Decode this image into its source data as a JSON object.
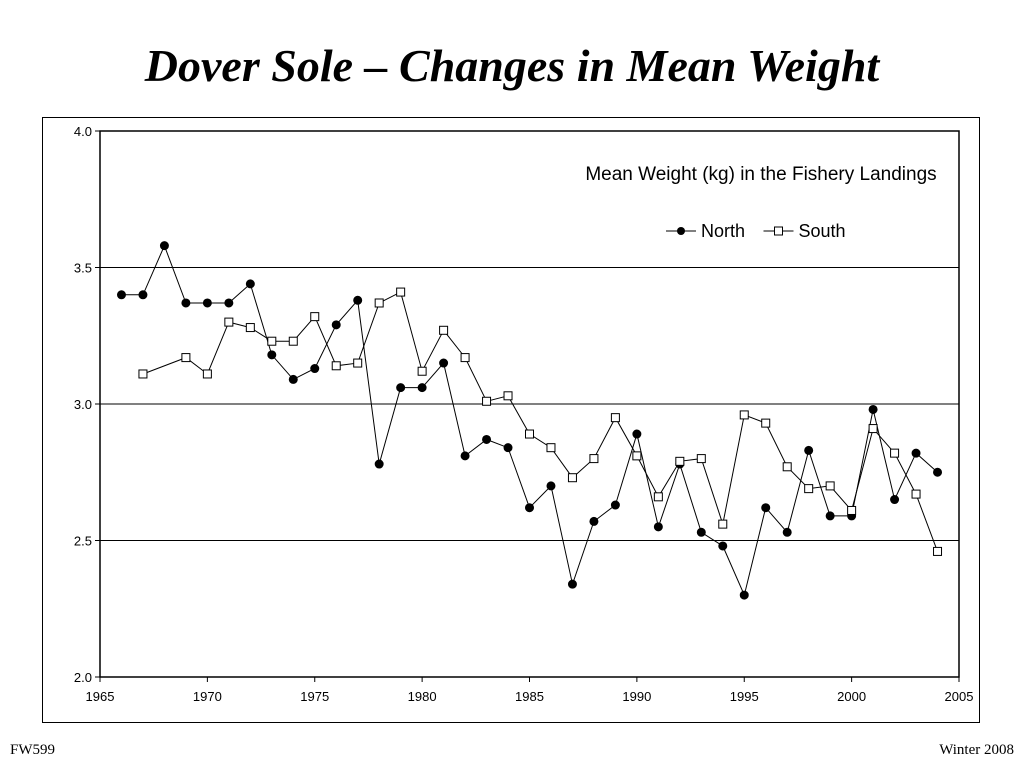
{
  "slide": {
    "title": "Dover Sole – Changes in Mean Weight",
    "footer_left": "FW599",
    "footer_right": "Winter 2008"
  },
  "chart_data": {
    "type": "line",
    "title": "Mean Weight (kg) in the Fishery Landings",
    "xlabel": "",
    "ylabel": "",
    "xlim": [
      1965,
      2005
    ],
    "ylim": [
      2.0,
      4.0
    ],
    "x_ticks": [
      "1965",
      "1970",
      "1975",
      "1980",
      "1985",
      "1990",
      "1995",
      "2000",
      "2005"
    ],
    "y_ticks": [
      "2.0",
      "2.5",
      "3.0",
      "3.5",
      "4.0"
    ],
    "grid": "horizontal",
    "legend_position": "top-right",
    "series": [
      {
        "name": "North",
        "marker": "filled-circle",
        "color": "#000000",
        "points": [
          [
            1966,
            3.4
          ],
          [
            1967,
            3.4
          ],
          [
            1968,
            3.58
          ],
          [
            1969,
            3.37
          ],
          [
            1970,
            3.37
          ],
          [
            1971,
            3.37
          ],
          [
            1972,
            3.44
          ],
          [
            1973,
            3.18
          ],
          [
            1974,
            3.09
          ],
          [
            1975,
            3.13
          ],
          [
            1976,
            3.29
          ],
          [
            1977,
            3.38
          ],
          [
            1978,
            2.78
          ],
          [
            1979,
            3.06
          ],
          [
            1980,
            3.06
          ],
          [
            1981,
            3.15
          ],
          [
            1982,
            2.81
          ],
          [
            1983,
            2.87
          ],
          [
            1984,
            2.84
          ],
          [
            1985,
            2.62
          ],
          [
            1986,
            2.7
          ],
          [
            1987,
            2.34
          ],
          [
            1988,
            2.57
          ],
          [
            1989,
            2.63
          ],
          [
            1990,
            2.89
          ],
          [
            1991,
            2.55
          ],
          [
            1992,
            2.78
          ],
          [
            1993,
            2.53
          ],
          [
            1994,
            2.48
          ],
          [
            1995,
            2.3
          ],
          [
            1996,
            2.62
          ],
          [
            1997,
            2.53
          ],
          [
            1998,
            2.83
          ],
          [
            1999,
            2.59
          ],
          [
            2000,
            2.59
          ],
          [
            2001,
            2.98
          ],
          [
            2002,
            2.65
          ],
          [
            2003,
            2.82
          ],
          [
            2004,
            2.75
          ]
        ]
      },
      {
        "name": "South",
        "marker": "open-square",
        "color": "#000000",
        "points": [
          [
            1967,
            3.11
          ],
          [
            1969,
            3.17
          ],
          [
            1970,
            3.11
          ],
          [
            1971,
            3.3
          ],
          [
            1972,
            3.28
          ],
          [
            1973,
            3.23
          ],
          [
            1974,
            3.23
          ],
          [
            1975,
            3.32
          ],
          [
            1976,
            3.14
          ],
          [
            1977,
            3.15
          ],
          [
            1978,
            3.37
          ],
          [
            1979,
            3.41
          ],
          [
            1980,
            3.12
          ],
          [
            1981,
            3.27
          ],
          [
            1982,
            3.17
          ],
          [
            1983,
            3.01
          ],
          [
            1984,
            3.03
          ],
          [
            1985,
            2.89
          ],
          [
            1986,
            2.84
          ],
          [
            1987,
            2.73
          ],
          [
            1988,
            2.8
          ],
          [
            1989,
            2.95
          ],
          [
            1990,
            2.81
          ],
          [
            1991,
            2.66
          ],
          [
            1992,
            2.79
          ],
          [
            1993,
            2.8
          ],
          [
            1994,
            2.56
          ],
          [
            1995,
            2.96
          ],
          [
            1996,
            2.93
          ],
          [
            1997,
            2.77
          ],
          [
            1998,
            2.69
          ],
          [
            1999,
            2.7
          ],
          [
            2000,
            2.61
          ],
          [
            2001,
            2.91
          ],
          [
            2002,
            2.82
          ],
          [
            2003,
            2.67
          ],
          [
            2004,
            2.46
          ]
        ]
      }
    ]
  }
}
